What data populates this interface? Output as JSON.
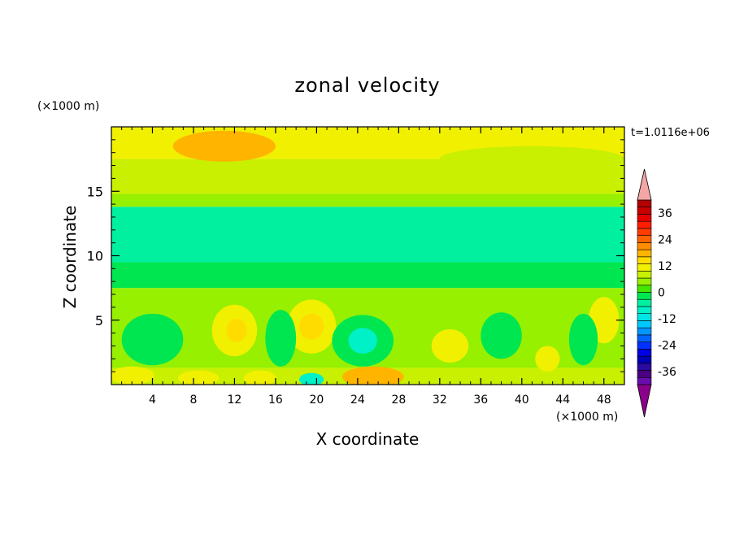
{
  "chart_data": {
    "type": "heatmap",
    "title": "zonal velocity",
    "xlabel": "X coordinate",
    "ylabel": "Z coordinate",
    "x_unit": "(×1000 m)",
    "y_unit": "(×1000 m)",
    "time_label": "t=1.0116e+06",
    "xlim": [
      0,
      50
    ],
    "ylim": [
      0,
      20
    ],
    "x_ticks": [
      "4",
      "8",
      "12",
      "16",
      "20",
      "24",
      "28",
      "32",
      "36",
      "40",
      "44",
      "48"
    ],
    "y_ticks": [
      "5",
      "10",
      "15"
    ],
    "colorbar": {
      "levels": [
        -42,
        -39,
        -36,
        -33,
        -30,
        -27,
        -24,
        -21,
        -18,
        -15,
        -12,
        -9,
        -6,
        -3,
        0,
        3,
        6,
        9,
        12,
        15,
        18,
        21,
        24,
        27,
        30,
        33,
        36,
        39,
        42
      ],
      "labels": [
        "-36",
        "-24",
        "-12",
        "0",
        "12",
        "24",
        "36"
      ],
      "colors": [
        "#6a0dad",
        "#4b0082",
        "#2a0aa0",
        "#0000b4",
        "#0000e6",
        "#0032ff",
        "#0064ff",
        "#0096ff",
        "#00c8ff",
        "#00e6e6",
        "#00f0c8",
        "#00f0a0",
        "#00e650",
        "#46e600",
        "#96f000",
        "#c8f000",
        "#f0f000",
        "#ffdc00",
        "#ffb400",
        "#ff8c00",
        "#ff6400",
        "#ff3c00",
        "#ff1e00",
        "#e60000",
        "#c80000",
        "#b40000"
      ],
      "under_color": "#8b008b",
      "over_color": "#f4a6a6"
    },
    "bands": [
      {
        "z": [
          0,
          1.3
        ],
        "value": 4
      },
      {
        "z": [
          1.3,
          7.5
        ],
        "value": 1
      },
      {
        "z": [
          7.5,
          9.5
        ],
        "value": -6
      },
      {
        "z": [
          9.5,
          13.8
        ],
        "value": -8
      },
      {
        "z": [
          13.8,
          14.8
        ],
        "value": 1
      },
      {
        "z": [
          14.8,
          17.5
        ],
        "value": 3
      },
      {
        "z": [
          17.5,
          20
        ],
        "value": 7
      }
    ],
    "features": [
      {
        "x": 12,
        "z": 4.2,
        "rx": 2.2,
        "rz": 2.0,
        "value": 6
      },
      {
        "x": 12.2,
        "z": 4.2,
        "rx": 1.0,
        "rz": 0.9,
        "value": 10
      },
      {
        "x": 19.5,
        "z": 4.5,
        "rx": 2.4,
        "rz": 2.1,
        "value": 6
      },
      {
        "x": 19.5,
        "z": 4.5,
        "rx": 1.2,
        "rz": 1.0,
        "value": 10
      },
      {
        "x": 4,
        "z": 3.5,
        "rx": 3.0,
        "rz": 2.0,
        "value": -6
      },
      {
        "x": 24.5,
        "z": 3.4,
        "rx": 3.0,
        "rz": 2.0,
        "value": -6
      },
      {
        "x": 24.5,
        "z": 3.4,
        "rx": 1.4,
        "rz": 1.0,
        "value": -12
      },
      {
        "x": 16.5,
        "z": 3.6,
        "rx": 1.5,
        "rz": 2.2,
        "value": -6
      },
      {
        "x": 33,
        "z": 3.0,
        "rx": 1.8,
        "rz": 1.3,
        "value": 6
      },
      {
        "x": 38,
        "z": 3.8,
        "rx": 2.0,
        "rz": 1.8,
        "value": -6
      },
      {
        "x": 42.5,
        "z": 2.0,
        "rx": 1.2,
        "rz": 1.0,
        "value": 6
      },
      {
        "x": 48,
        "z": 5.0,
        "rx": 1.5,
        "rz": 1.8,
        "value": 6
      },
      {
        "x": 46,
        "z": 3.5,
        "rx": 1.4,
        "rz": 2.0,
        "value": -6
      },
      {
        "x": 2,
        "z": 0.7,
        "rx": 2.2,
        "rz": 0.7,
        "value": 8
      },
      {
        "x": 8.5,
        "z": 0.5,
        "rx": 2.0,
        "rz": 0.6,
        "value": 8
      },
      {
        "x": 14.5,
        "z": 0.5,
        "rx": 1.6,
        "rz": 0.6,
        "value": 8
      },
      {
        "x": 25.5,
        "z": 0.6,
        "rx": 3.0,
        "rz": 0.8,
        "value": 12
      },
      {
        "x": 19.5,
        "z": 0.4,
        "rx": 1.2,
        "rz": 0.5,
        "value": -12
      },
      {
        "x": 11,
        "z": 18.5,
        "rx": 5.0,
        "rz": 1.2,
        "value": 12
      },
      {
        "x": 41,
        "z": 17.5,
        "rx": 9.0,
        "rz": 1.0,
        "value": 5
      },
      {
        "x": 31,
        "z": 16.3,
        "rx": 5.0,
        "rz": 0.7,
        "value": 5
      }
    ]
  }
}
